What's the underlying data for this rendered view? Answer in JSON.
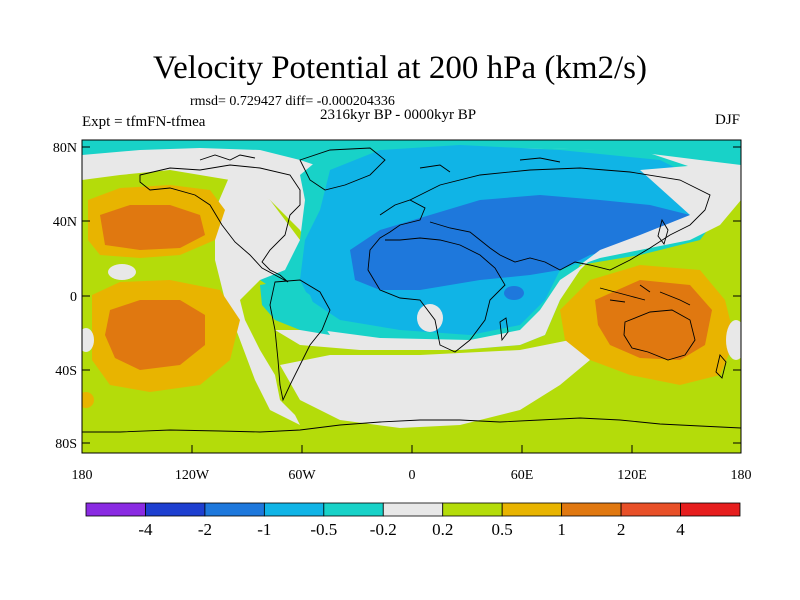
{
  "title": "Velocity Potential at 200 hPa (km2/s)",
  "stats_line": "rmsd= 0.729427 diff= -0.000204336",
  "experiment": "Expt = tfmFN-tfmea",
  "period": "2316kyr BP - 0000kyr BP",
  "season": "DJF",
  "lat_labels": [
    "80N",
    "40N",
    "0",
    "40S",
    "80S"
  ],
  "lon_labels": [
    "180",
    "120W",
    "60W",
    "0",
    "60E",
    "120E",
    "180"
  ],
  "colorbar": {
    "labels": [
      "-4",
      "-2",
      "-1",
      "-0.5",
      "-0.2",
      "0.2",
      "0.5",
      "1",
      "2",
      "4"
    ],
    "colors": [
      "#8a2be2",
      "#1e3fd0",
      "#1e78dc",
      "#10b4e6",
      "#18d2c8",
      "#e8e8e8",
      "#b4dc0a",
      "#e8b400",
      "#e07810",
      "#e85028",
      "#e61e1e"
    ]
  },
  "fill_colors": {
    "neg2": "#1e78dc",
    "neg1": "#10b4e6",
    "neg05": "#18d2c8",
    "neutral": "#e8e8e8",
    "pos02": "#b4dc0a",
    "pos05": "#e8b400",
    "pos1": "#e07810"
  }
}
